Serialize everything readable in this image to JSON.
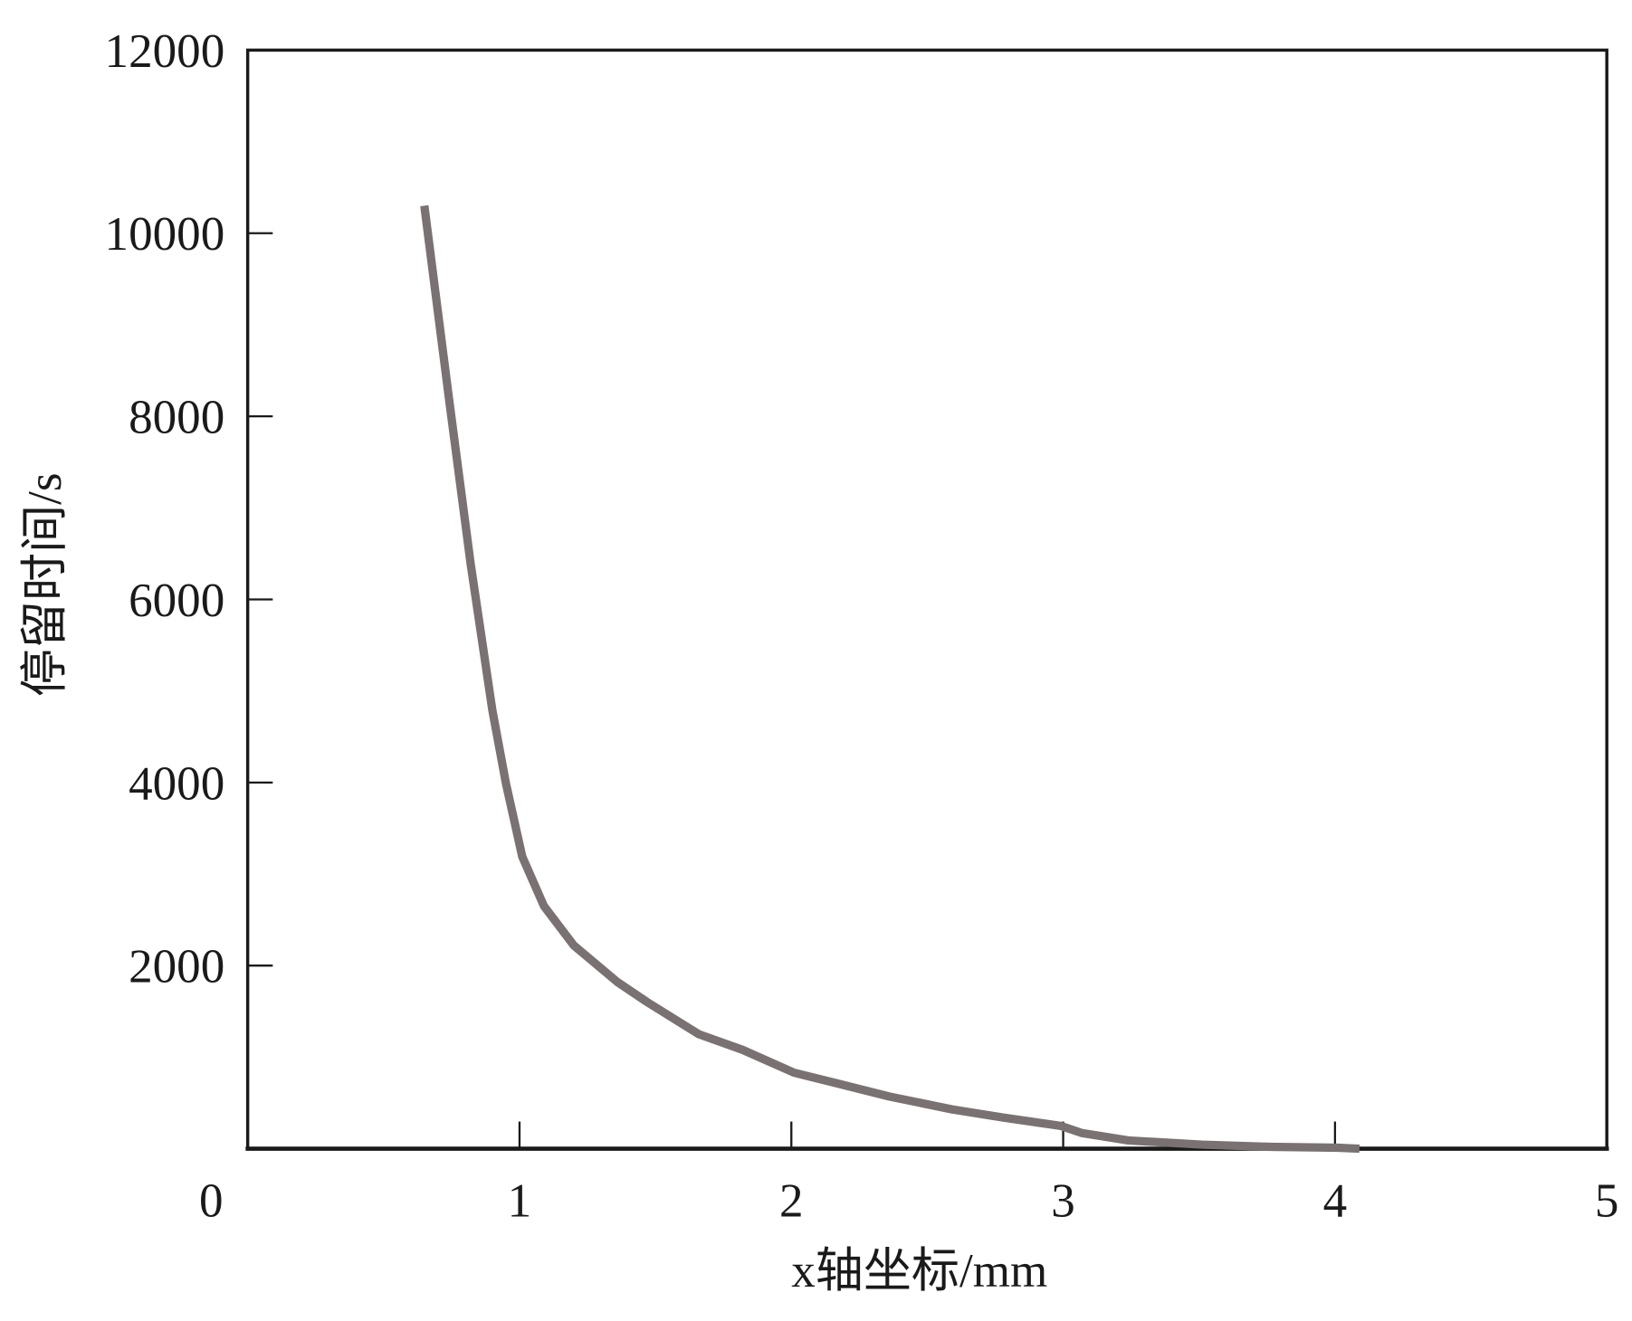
{
  "chart_data": {
    "type": "line",
    "title": "",
    "xlabel": "x轴坐标/mm",
    "ylabel": "停留时间/s",
    "xlim": [
      0,
      5
    ],
    "ylim": [
      0,
      12000
    ],
    "xticks": [
      0,
      1,
      2,
      3,
      4,
      5
    ],
    "yticks": [
      2000,
      4000,
      6000,
      8000,
      10000,
      12000
    ],
    "grid": false,
    "line_color": "#7a7272",
    "series": [
      {
        "x": [
          0.65,
          0.74,
          0.82,
          0.9,
          0.95,
          1.01,
          1.09,
          1.2,
          1.36,
          1.47,
          1.66,
          1.82,
          2.01,
          2.16,
          2.36,
          2.59,
          2.78,
          2.99,
          3.07,
          3.24,
          3.51,
          3.76,
          4.01,
          4.09
        ],
        "y": [
          10300,
          8210,
          6390,
          4790,
          3990,
          3190,
          2650,
          2220,
          1820,
          1600,
          1250,
          1080,
          830,
          720,
          570,
          430,
          340,
          250,
          170,
          90,
          45,
          20,
          10,
          0
        ]
      }
    ]
  }
}
